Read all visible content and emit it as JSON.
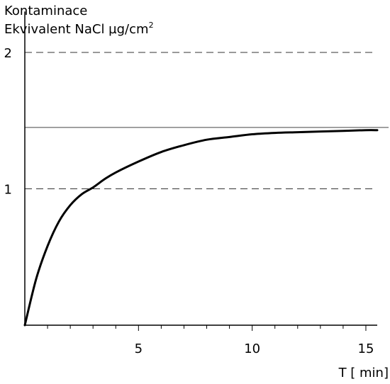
{
  "chart_data": {
    "type": "line",
    "title_line1": "Kontaminace",
    "title_line2": "Ekvivalent NaCl  µg/cm",
    "title_superscript": "2",
    "xlabel": "T [ min]",
    "ylabel": "",
    "xlim": [
      0,
      15.5
    ],
    "ylim": [
      0,
      2.3
    ],
    "x_ticks": [
      {
        "value": 5,
        "label": "5"
      },
      {
        "value": 10,
        "label": "10"
      },
      {
        "value": 15,
        "label": "15"
      }
    ],
    "x_minor_ticks": [
      1,
      2,
      3,
      4,
      6,
      7,
      8,
      9,
      11,
      12,
      13,
      14
    ],
    "y_ticks": [
      {
        "value": 1,
        "label": "1"
      },
      {
        "value": 2,
        "label": "2"
      }
    ],
    "reference_lines": [
      {
        "value": 2,
        "style": "dashed"
      },
      {
        "value": 1,
        "style": "dashed"
      },
      {
        "value": 1.45,
        "style": "solid"
      }
    ],
    "series": [
      {
        "x": [
          0,
          0.5,
          1,
          1.5,
          2,
          2.5,
          3,
          3.5,
          4,
          5,
          6,
          7,
          8,
          9,
          10,
          11,
          12,
          13,
          14,
          15,
          15.5
        ],
        "values": [
          0,
          0.34,
          0.58,
          0.76,
          0.88,
          0.96,
          1.01,
          1.07,
          1.12,
          1.2,
          1.27,
          1.32,
          1.36,
          1.38,
          1.4,
          1.41,
          1.415,
          1.42,
          1.425,
          1.43,
          1.43
        ]
      }
    ],
    "grid": false,
    "legend": "none"
  }
}
